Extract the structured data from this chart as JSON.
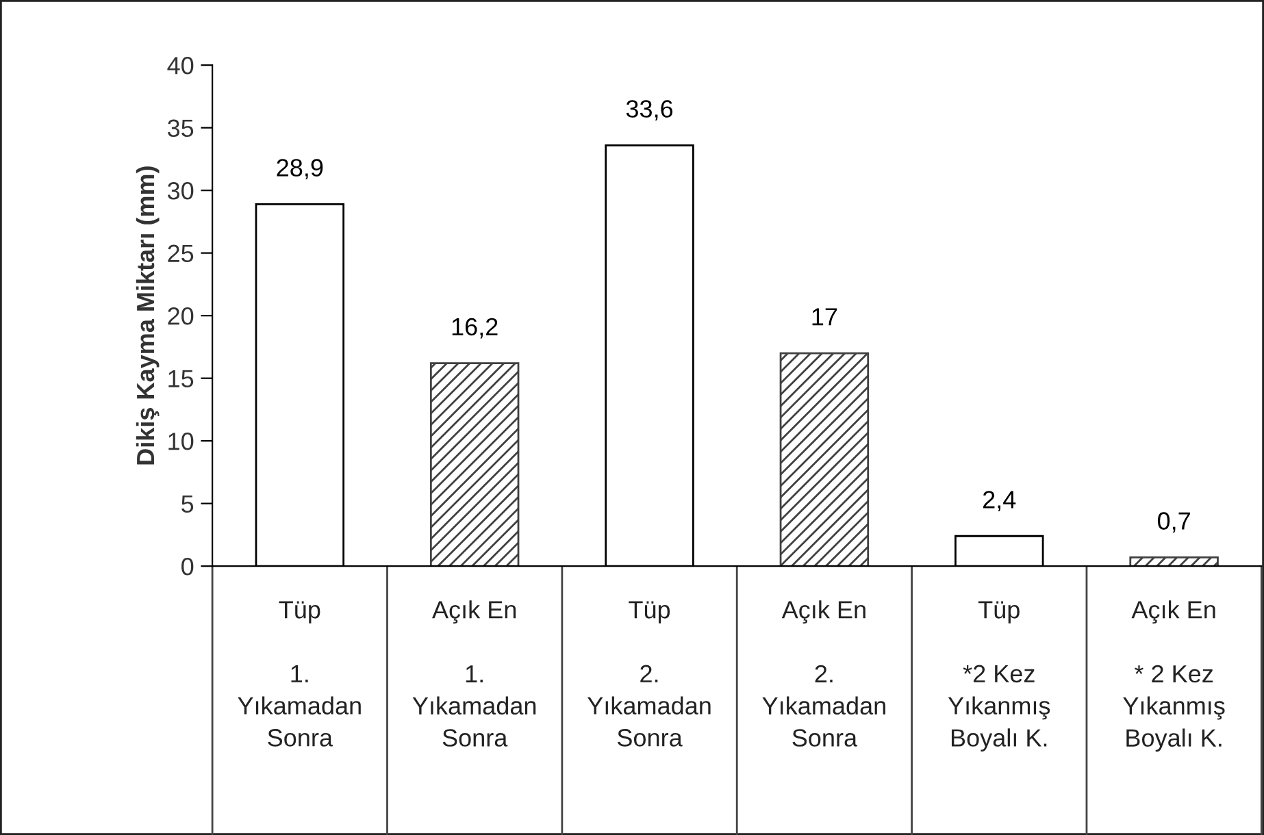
{
  "chart_data": {
    "type": "bar",
    "ylabel": "Dikiş Kayma Miktarı (mm)",
    "categories": [
      "Tüp\n\n1.\nYıkamadan\nSonra",
      "Açık En\n\n1.\nYıkamadan\nSonra",
      "Tüp\n\n2.\nYıkamadan\nSonra",
      "Açık En\n\n2.\nYıkamadan\nSonra",
      "Tüp\n\n*2 Kez\nYıkanmış\nBoyalı K.",
      "Açık En\n\n* 2 Kez\nYıkanmış\nBoyalı K."
    ],
    "values": [
      28.9,
      16.2,
      33.6,
      17,
      2.4,
      0.7
    ],
    "value_labels": [
      "28,9",
      "16,2",
      "33,6",
      "17",
      "2,4",
      "0,7"
    ],
    "colors": [
      "#ffffff",
      "#404040",
      "#ffffff",
      "#404040",
      "#ffffff",
      "#404040"
    ],
    "ylim": [
      0,
      40
    ],
    "yticks": [
      0,
      5,
      10,
      15,
      20,
      25,
      30,
      35,
      40
    ],
    "grid": false,
    "legend": false
  }
}
